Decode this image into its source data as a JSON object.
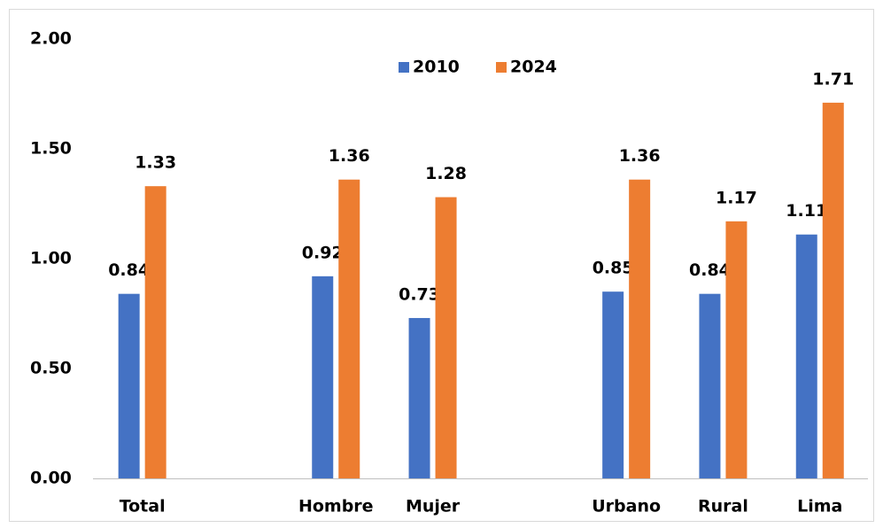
{
  "chart_data": {
    "type": "bar",
    "categories": [
      "Total",
      null,
      "Hombre",
      "Mujer",
      null,
      "Urbano",
      "Rural",
      "Lima"
    ],
    "series": [
      {
        "name": "2010",
        "color": "#4472c4",
        "values": [
          0.84,
          null,
          0.92,
          0.73,
          null,
          0.85,
          0.84,
          1.11
        ]
      },
      {
        "name": "2024",
        "color": "#ed7d31",
        "values": [
          1.33,
          null,
          1.36,
          1.28,
          null,
          1.36,
          1.17,
          1.71
        ]
      }
    ],
    "ylim": [
      0,
      2
    ],
    "yticks": [
      {
        "value": 0,
        "label": "0.00"
      },
      {
        "value": 0.5,
        "label": "0.50"
      },
      {
        "value": 1,
        "label": "1.00"
      },
      {
        "value": 1.5,
        "label": "1.50"
      },
      {
        "value": 2,
        "label": "2.00"
      }
    ],
    "legend": "top",
    "grid": false
  }
}
